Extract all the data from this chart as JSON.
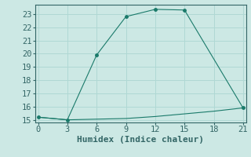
{
  "xlabel": "Humidex (Indice chaleur)",
  "bg_color": "#cce8e4",
  "grid_color": "#b0d8d4",
  "line_color": "#1a7a6a",
  "line1_x": [
    0,
    3,
    6,
    9,
    12,
    15,
    21
  ],
  "line1_y": [
    15.2,
    15.0,
    19.9,
    22.8,
    23.35,
    23.3,
    15.9
  ],
  "line2_x": [
    0,
    3,
    6,
    9,
    12,
    15,
    18,
    21
  ],
  "line2_y": [
    15.2,
    15.0,
    15.05,
    15.1,
    15.25,
    15.45,
    15.65,
    15.9
  ],
  "xlim": [
    -0.3,
    21.3
  ],
  "ylim": [
    14.8,
    23.7
  ],
  "xticks": [
    0,
    3,
    6,
    9,
    12,
    15,
    18,
    21
  ],
  "yticks": [
    15,
    16,
    17,
    18,
    19,
    20,
    21,
    22,
    23
  ],
  "fontsize_label": 8,
  "fontsize_tick": 7.5,
  "tick_color": "#336666",
  "label_color": "#336666"
}
